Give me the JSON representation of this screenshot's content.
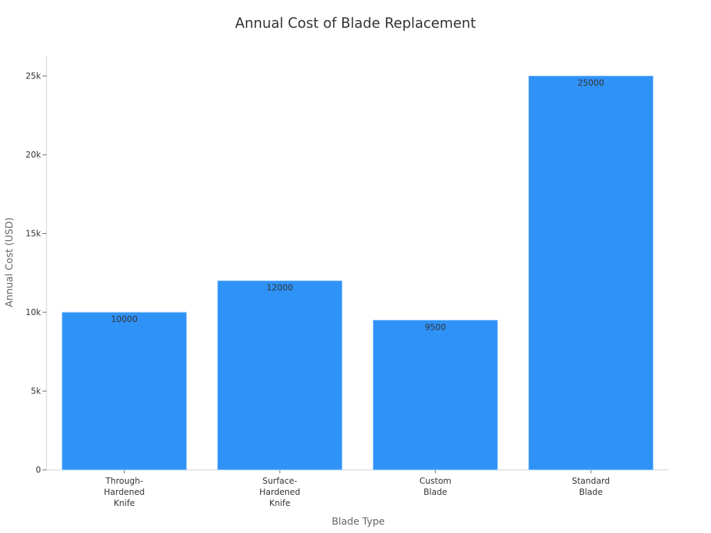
{
  "chart_data": {
    "type": "bar",
    "title": "Annual Cost of Blade Replacement",
    "xlabel": "Blade Type",
    "ylabel": "Annual Cost (USD)",
    "categories": [
      [
        "Through-",
        "Hardened",
        "Knife"
      ],
      [
        "Surface-",
        "Hardened",
        "Knife"
      ],
      [
        "Custom",
        "Blade"
      ],
      [
        "Standard",
        "Blade"
      ]
    ],
    "values": [
      10000,
      12000,
      9500,
      25000
    ],
    "ylim": [
      0,
      26300
    ],
    "yticks": [
      {
        "value": 0,
        "label": "0"
      },
      {
        "value": 5000,
        "label": "5k"
      },
      {
        "value": 10000,
        "label": "10k"
      },
      {
        "value": 15000,
        "label": "15k"
      },
      {
        "value": 20000,
        "label": "20k"
      },
      {
        "value": 25000,
        "label": "25k"
      }
    ],
    "grid": false,
    "bar_color": "#2f92f7"
  }
}
